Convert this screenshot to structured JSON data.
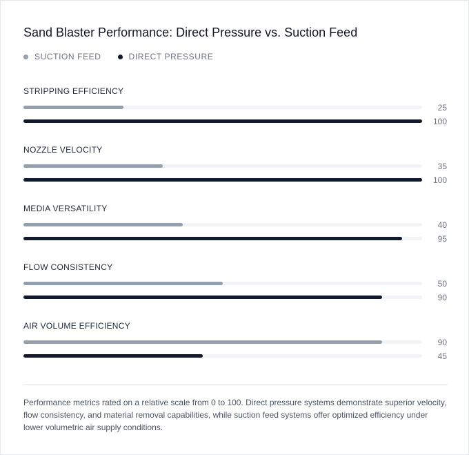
{
  "title": "Sand Blaster Performance: Direct Pressure vs. Suction Feed",
  "legend": [
    {
      "label": "SUCTION FEED",
      "color": "#94a0b0"
    },
    {
      "label": "DIRECT PRESSURE",
      "color": "#111a2e"
    }
  ],
  "chart_data": {
    "type": "bar",
    "orientation": "horizontal",
    "title": "Sand Blaster Performance: Direct Pressure vs. Suction Feed",
    "categories": [
      "STRIPPING EFFICIENCY",
      "NOZZLE VELOCITY",
      "MEDIA VERSATILITY",
      "FLOW CONSISTENCY",
      "AIR VOLUME EFFICIENCY"
    ],
    "series": [
      {
        "name": "SUCTION FEED",
        "color": "#94a0b0",
        "values": [
          25,
          35,
          40,
          50,
          90
        ]
      },
      {
        "name": "DIRECT PRESSURE",
        "color": "#111a2e",
        "values": [
          100,
          100,
          95,
          90,
          45
        ]
      }
    ],
    "xlim": [
      0,
      100
    ],
    "grid": false,
    "legend_position": "top-left"
  },
  "footnote": "Performance metrics rated on a relative scale from 0 to 100. Direct pressure systems demonstrate superior velocity, flow consistency, and material removal capabilities, while suction feed systems offer optimized efficiency under lower volumetric air supply conditions."
}
